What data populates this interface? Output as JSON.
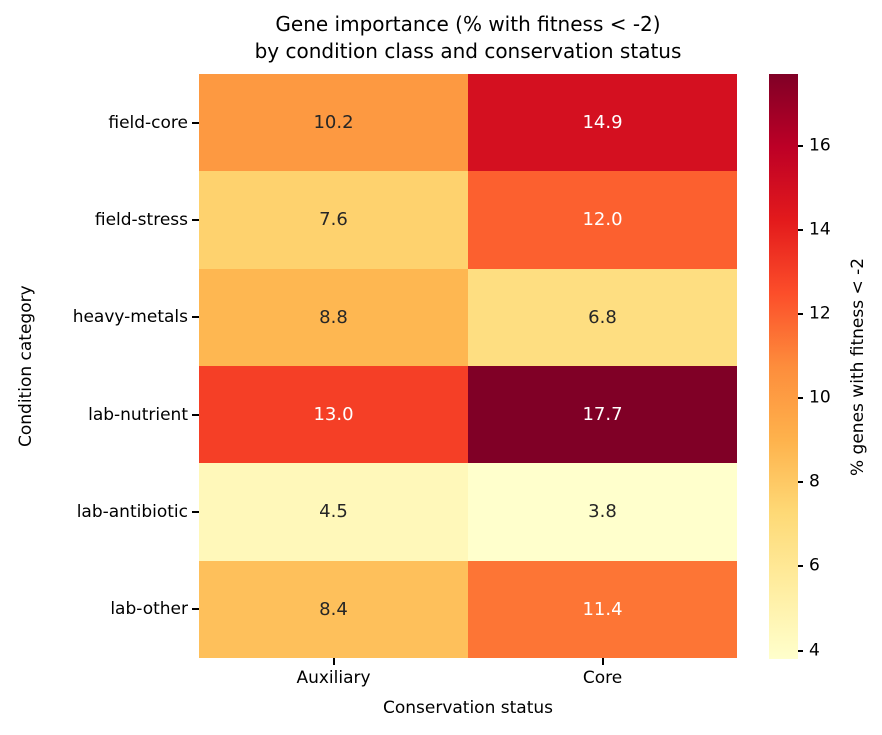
{
  "figure": {
    "title_line1": "Gene importance (% with fitness < -2)",
    "title_line2": "by condition class and conservation status",
    "background": "#ffffff",
    "text_color": "#000000"
  },
  "chart_data": {
    "type": "heatmap",
    "title": "Gene importance (% with fitness < -2)\nby condition class and conservation status",
    "xlabel": "Conservation status",
    "ylabel": "Condition category",
    "columns": [
      "Auxiliary",
      "Core"
    ],
    "rows": [
      "field-core",
      "field-stress",
      "heavy-metals",
      "lab-nutrient",
      "lab-antibiotic",
      "lab-other"
    ],
    "values": [
      [
        10.2,
        14.9
      ],
      [
        7.6,
        12.0
      ],
      [
        8.8,
        6.8
      ],
      [
        13.0,
        17.7
      ],
      [
        4.5,
        3.8
      ],
      [
        8.4,
        11.4
      ]
    ],
    "vmin": 3.8,
    "vmax": 17.7,
    "colormap": {
      "name": "YlOrRd",
      "anchors": [
        [
          0.0,
          "#ffffcc"
        ],
        [
          0.125,
          "#ffeda0"
        ],
        [
          0.25,
          "#fed976"
        ],
        [
          0.375,
          "#feb24c"
        ],
        [
          0.5,
          "#fd8d3c"
        ],
        [
          0.625,
          "#fc4e2a"
        ],
        [
          0.75,
          "#e31a1c"
        ],
        [
          0.875,
          "#bd0026"
        ],
        [
          1.0,
          "#800026"
        ]
      ]
    },
    "annotation_colors": {
      "dark": "#262626",
      "light": "#ffffff"
    },
    "annotation_luminance_threshold": 0.408,
    "colorbar": {
      "label": "% genes with fitness < -2",
      "ticks": [
        4,
        6,
        8,
        10,
        12,
        14,
        16
      ]
    },
    "grid": false,
    "legend_position": "right-colorbar"
  }
}
